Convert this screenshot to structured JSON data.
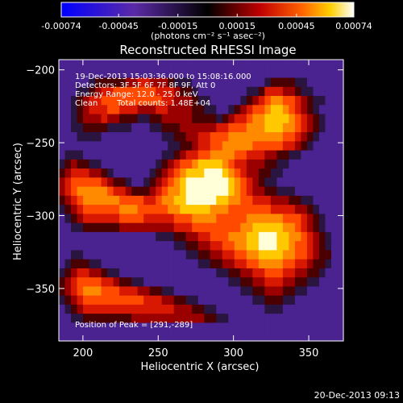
{
  "chart_data": {
    "type": "heatmap",
    "title": "Reconstructed RHESSI Image",
    "xlabel": "Heliocentric X (arcsec)",
    "ylabel": "Heliocentric Y (arcsec)",
    "xlim": [
      184,
      373
    ],
    "ylim": [
      -386,
      -193
    ],
    "x_ticks": [
      200,
      250,
      300,
      350
    ],
    "y_ticks": [
      -200,
      -250,
      -300,
      -350
    ],
    "colorbar": {
      "range": [
        -0.00074,
        0.00074
      ],
      "ticks": [
        -0.00074,
        -0.00045,
        -0.00015,
        0.00015,
        0.00045,
        0.00074
      ],
      "tick_labels": [
        "-0.00074",
        "-0.00045",
        "-0.00015",
        "0.00015",
        "0.00045",
        "0.00074"
      ],
      "unit_label": "(photons cm⁻² s⁻¹ asec⁻²)"
    },
    "annotations": {
      "time_range": "19-Dec-2013 15:03:36.000 to 15:08:16.000",
      "detectors": "Detectors: 3F 5F 6F 7F 8F 9F, Att 0",
      "energy_range": "Energy Range: 12.0 - 25.0 keV",
      "clean": "Clean",
      "total_counts": "Total counts: 1.48E+04",
      "peak": "Position of Peak = [291,-289]"
    },
    "peak_position": [
      291,
      -289
    ],
    "peak_value": 0.00074,
    "colormap": [
      "#0000ff",
      "#5b2aa6",
      "#3a1f4e",
      "#000000",
      "#8a0000",
      "#ff2200",
      "#ff8800",
      "#ffd000",
      "#ffffcc",
      "#ffffff"
    ],
    "image_rows": [
      "222222222222222222222222222222222222222222222",
      "222222222222222222222222222222222222222222222",
      "222223444445566555433322222222222234444332222",
      "222334566777777766654432222222233466655433222",
      "223456677777777776655543322222345678877654332",
      "223456667766655566555544332234567789987654322",
      "223455565544433445555544443456678899998765432",
      "223344443333222334445555556677788899988765432",
      "222333322222222223344556677788888888877654322",
      "222222222222222222334456677888887777766543222",
      "233322222222222223345667788887766655443322222",
      "345443322222222234567789999876655544332222222",
      "456665543222222345678999aaa98765544332222222",
      "567777765443223456789aaaaaaa9876543322222222",
      "567888887665444567889aaaaaaa9876554433322222",
      "456788888877776678899aaaaa99887766655544332",
      "345677777788877777889999988877777776666554322",
      "234566666677776666677788887777788888877765432",
      "223344444455555555566677777777889999988765432",
      "222222222222222233344556677788899aaa99887654322",
      "222222222222222222233445566778899aaa998776543",
      "223322222222222222222334455667788999988776544",
      "234443322222222222222223344556677888877665443",
      "345665543322222222222222223344556677766554432",
      "456777766544332222222222222233445566655443322",
      "456788877766655443322222222222334455544332222",
      "345677777777776665544332222222223344433222222",
      "234566666666666666655544332222222233322222222",
      "223344444444555555555555443322222222222222222",
      "222222222222222222222222222222222222222222222",
      "222222222222222222222222222222222222222222222"
    ]
  }
}
